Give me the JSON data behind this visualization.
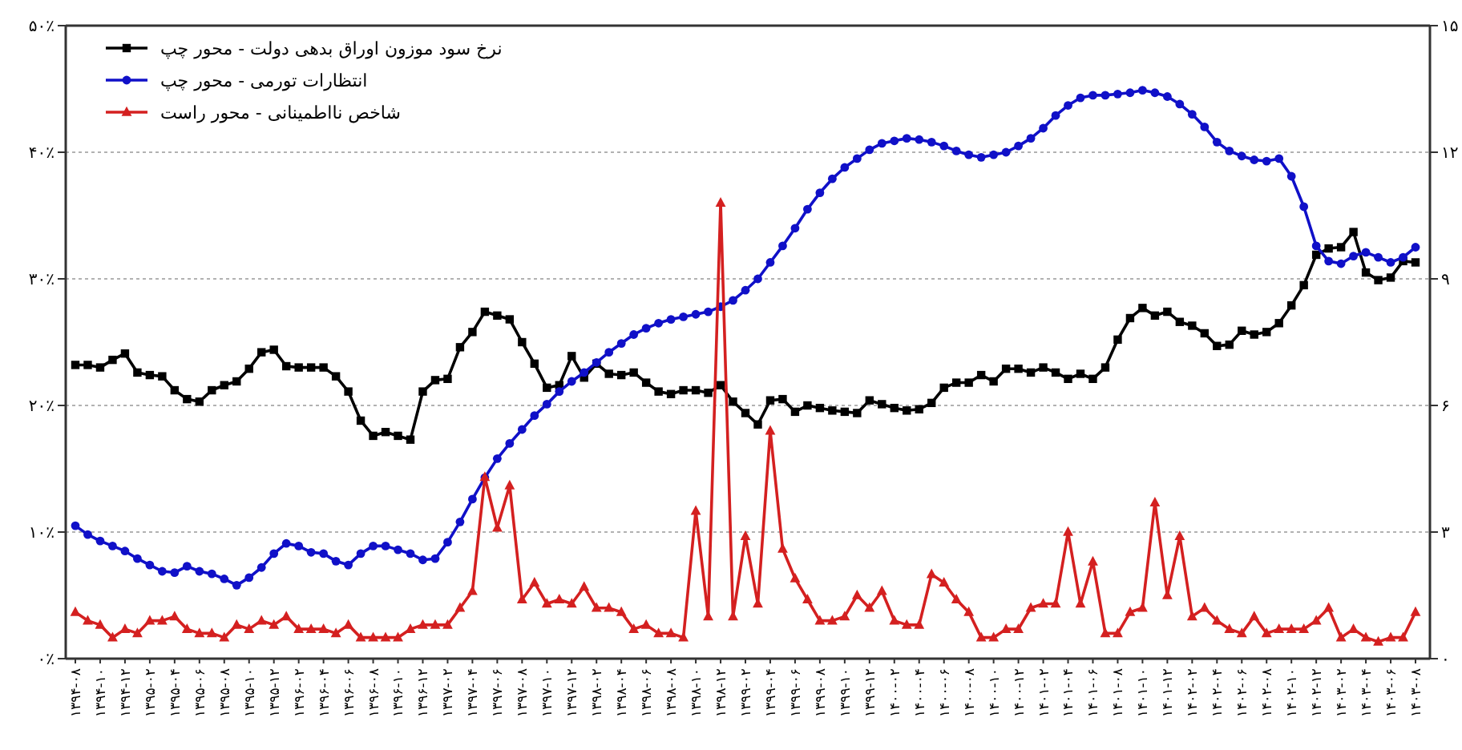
{
  "chart_data": {
    "type": "line",
    "categories": [
      "۱۳۹۴-۰۸",
      null,
      "۱۳۹۴-۱۰",
      null,
      "۱۳۹۴-۱۲",
      null,
      "۱۳۹۵-۰۲",
      null,
      "۱۳۹۵-۰۴",
      null,
      "۱۳۹۵-۰۶",
      null,
      "۱۳۹۵-۰۸",
      null,
      "۱۳۹۵-۱۰",
      null,
      "۱۳۹۵-۱۲",
      null,
      "۱۳۹۶-۰۲",
      null,
      "۱۳۹۶-۰۴",
      null,
      "۱۳۹۶-۰۶",
      null,
      "۱۳۹۶-۰۸",
      null,
      "۱۳۹۶-۱۰",
      null,
      "۱۳۹۶-۱۲",
      null,
      "۱۳۹۷-۰۲",
      null,
      "۱۳۹۷-۰۴",
      null,
      "۱۳۹۷-۰۶",
      null,
      "۱۳۹۷-۰۸",
      null,
      "۱۳۹۷-۱۰",
      null,
      "۱۳۹۷-۱۲",
      null,
      "۱۳۹۸-۰۲",
      null,
      "۱۳۹۸-۰۴",
      null,
      "۱۳۹۸-۰۶",
      null,
      "۱۳۹۸-۰۸",
      null,
      "۱۳۹۸-۱۰",
      null,
      "۱۳۹۸-۱۲",
      null,
      "۱۳۹۹-۰۲",
      null,
      "۱۳۹۹-۰۴",
      null,
      "۱۳۹۹-۰۶",
      null,
      "۱۳۹۹-۰۸",
      null,
      "۱۳۹۹-۱۰",
      null,
      "۱۳۹۹-۱۲",
      null,
      "۱۴۰۰-۰۲",
      null,
      "۱۴۰۰-۰۴",
      null,
      "۱۴۰۰-۰۶",
      null,
      "۱۴۰۰-۰۸",
      null,
      "۱۴۰۰-۱۰",
      null,
      "۱۴۰۰-۱۲",
      null,
      "۱۴۰۱-۰۲",
      null,
      "۱۴۰۱-۰۴",
      null,
      "۱۴۰۱-۰۶",
      null,
      "۱۴۰۱-۰۸",
      null,
      "۱۴۰۱-۱۰",
      null,
      "۱۴۰۱-۱۲",
      null,
      "۱۴۰۲-۰۲",
      null,
      "۱۴۰۲-۰۴",
      null,
      "۱۴۰۲-۰۶",
      null,
      "۱۴۰۲-۰۸",
      null,
      "۱۴۰۲-۱۰",
      null,
      "۱۴۰۲-۱۲",
      null,
      "۱۴۰۳-۰۲",
      null,
      "۱۴۰۳-۰۴",
      null,
      "۱۴۰۳-۰۶",
      null,
      "۱۴۰۳-۰۸"
    ],
    "series": [
      {
        "name": "نرخ سود موزون اوراق بدهی دولت - محور چپ",
        "color": "#000000",
        "marker": "square",
        "values": [
          23.2,
          23.2,
          23.0,
          23.6,
          24.1,
          22.6,
          22.4,
          22.3,
          21.2,
          20.5,
          20.3,
          21.2,
          21.6,
          21.9,
          22.9,
          24.2,
          24.4,
          23.1,
          23.0,
          23.0,
          23.0,
          22.3,
          21.1,
          18.8,
          17.6,
          17.9,
          17.6,
          17.3,
          21.1,
          22.0,
          22.1,
          24.6,
          25.8,
          27.4,
          27.1,
          26.8,
          25.0,
          23.3,
          21.4,
          21.6,
          23.9,
          22.2,
          23.3,
          22.5,
          22.4,
          22.6,
          21.8,
          21.1,
          20.9,
          21.2,
          21.2,
          21.0,
          21.6,
          20.3,
          19.4,
          18.5,
          20.4,
          20.5,
          19.5,
          20.0,
          19.8,
          19.6,
          19.5,
          19.4,
          20.4,
          20.1,
          19.8,
          19.6,
          19.7,
          20.2,
          21.4,
          21.8,
          21.8,
          22.4,
          21.9,
          22.9,
          22.9,
          22.6,
          23.0,
          22.6,
          22.1,
          22.5,
          22.1,
          23.0,
          25.2,
          26.9,
          27.7,
          27.1,
          27.4,
          26.6,
          26.3,
          25.7,
          24.7,
          24.8,
          25.9,
          25.6,
          25.8,
          26.5,
          27.9,
          29.5,
          31.9,
          32.4,
          32.5,
          33.7,
          30.5,
          29.9,
          30.1,
          31.4,
          31.3
        ]
      },
      {
        "name": "انتظارات تورمی - محور چپ",
        "color": "#1010c8",
        "marker": "circle",
        "values": [
          10.5,
          9.8,
          9.3,
          8.9,
          8.5,
          7.9,
          7.4,
          6.9,
          6.8,
          7.3,
          6.9,
          6.7,
          6.3,
          5.8,
          6.4,
          7.2,
          8.3,
          9.1,
          8.9,
          8.4,
          8.3,
          7.7,
          7.4,
          8.3,
          8.9,
          8.9,
          8.6,
          8.3,
          7.8,
          7.9,
          9.2,
          10.8,
          12.6,
          14.3,
          15.8,
          17.0,
          18.1,
          19.2,
          20.1,
          21.1,
          21.9,
          22.6,
          23.4,
          24.2,
          24.9,
          25.6,
          26.1,
          26.5,
          26.8,
          27.0,
          27.2,
          27.4,
          27.8,
          28.3,
          29.1,
          30.0,
          31.3,
          32.6,
          34.0,
          35.5,
          36.8,
          37.9,
          38.8,
          39.5,
          40.2,
          40.7,
          40.9,
          41.1,
          41.0,
          40.8,
          40.5,
          40.1,
          39.8,
          39.6,
          39.8,
          40.0,
          40.5,
          41.1,
          41.9,
          42.9,
          43.7,
          44.3,
          44.5,
          44.5,
          44.6,
          44.7,
          44.9,
          44.7,
          44.4,
          43.8,
          43.0,
          42.0,
          40.8,
          40.1,
          39.7,
          39.4,
          39.3,
          39.5,
          38.1,
          35.7,
          32.6,
          31.4,
          31.2,
          31.8,
          32.1,
          31.7,
          31.3,
          31.7,
          32.5
        ]
      },
      {
        "name": "شاخص نااطمینانی - محور راست",
        "color": "#d42020",
        "marker": "triangle",
        "axis": "y2",
        "values": [
          1.1,
          0.9,
          0.8,
          0.5,
          0.7,
          0.6,
          0.9,
          0.9,
          1.0,
          0.7,
          0.6,
          0.6,
          0.5,
          0.8,
          0.7,
          0.9,
          0.8,
          1.0,
          0.7,
          0.7,
          0.7,
          0.6,
          0.8,
          0.5,
          0.5,
          0.5,
          0.5,
          0.7,
          0.8,
          0.8,
          0.8,
          1.2,
          1.6,
          4.3,
          3.1,
          4.1,
          1.4,
          1.8,
          1.3,
          1.4,
          1.3,
          1.7,
          1.2,
          1.2,
          1.1,
          0.7,
          0.8,
          0.6,
          0.6,
          0.5,
          3.5,
          1.0,
          10.8,
          1.0,
          2.9,
          1.3,
          5.4,
          2.6,
          1.9,
          1.4,
          0.9,
          0.9,
          1.0,
          1.5,
          1.2,
          1.6,
          0.9,
          0.8,
          0.8,
          2.0,
          1.8,
          1.4,
          1.1,
          0.5,
          0.5,
          0.7,
          0.7,
          1.2,
          1.3,
          1.3,
          3.0,
          1.3,
          2.3,
          0.6,
          0.6,
          1.1,
          1.2,
          3.7,
          1.5,
          2.9,
          1.0,
          1.2,
          0.9,
          0.7,
          0.6,
          1.0,
          0.6,
          0.7,
          0.7,
          0.7,
          0.9,
          1.2,
          0.5,
          0.7,
          0.5,
          0.4,
          0.5,
          0.5,
          1.1
        ]
      }
    ],
    "ylim": [
      0,
      50
    ],
    "yticks": [
      {
        "value": 0,
        "label": "۰٪"
      },
      {
        "value": 10,
        "label": "۱۰٪"
      },
      {
        "value": 20,
        "label": "۲۰٪"
      },
      {
        "value": 30,
        "label": "۳۰٪"
      },
      {
        "value": 40,
        "label": "۴۰٪"
      },
      {
        "value": 50,
        "label": "۵۰٪"
      }
    ],
    "y2lim": [
      0,
      15
    ],
    "y2ticks": [
      {
        "value": 0,
        "label": "۰"
      },
      {
        "value": 3,
        "label": "۳"
      },
      {
        "value": 6,
        "label": "۶"
      },
      {
        "value": 9,
        "label": "۹"
      },
      {
        "value": 12,
        "label": "۱۲"
      },
      {
        "value": 15,
        "label": "۱۵"
      }
    ],
    "grid": "y",
    "legend": "top left",
    "line_style": "solid"
  }
}
